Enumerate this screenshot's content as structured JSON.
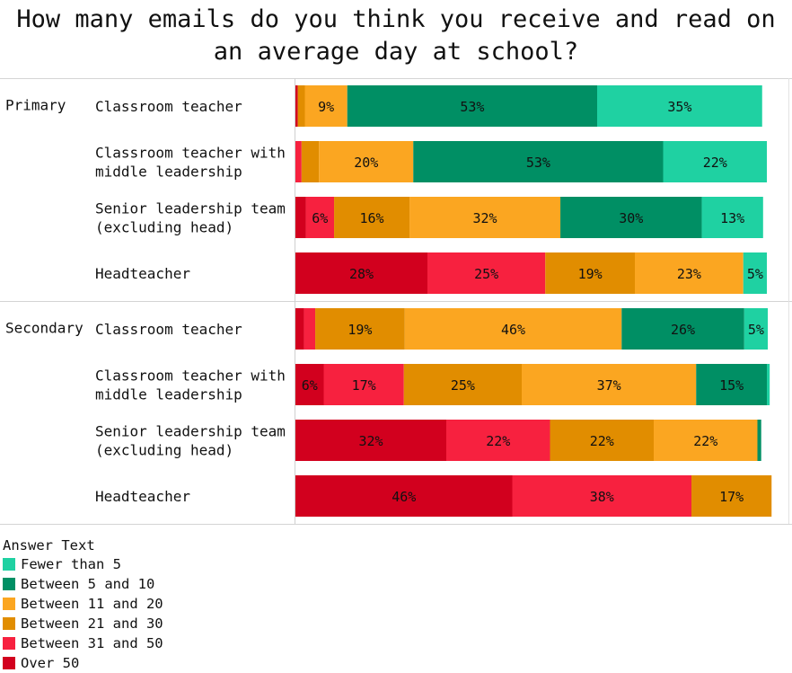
{
  "chart_data": {
    "type": "bar",
    "orientation": "horizontal-stacked",
    "title": "How many emails do you think you receive and read on\nan average day at school?",
    "legend_title": "Answer Text",
    "legend_position": "bottom-left",
    "series": [
      {
        "name": "Over 50",
        "color": "#d2001e"
      },
      {
        "name": "Between 31 and 50",
        "color": "#f7213f"
      },
      {
        "name": "Between 21 and 30",
        "color": "#e18d00"
      },
      {
        "name": "Between 11 and 20",
        "color": "#fba621"
      },
      {
        "name": "Between 5 and 10",
        "color": "#008f64"
      },
      {
        "name": "Fewer than 5",
        "color": "#1fd1a2"
      }
    ],
    "groups": [
      {
        "label": "Primary",
        "rows": [
          {
            "label": "Classroom teacher",
            "values": [
              0.5,
              0,
              1.5,
              9,
              53,
              35
            ]
          },
          {
            "label": "Classroom teacher with\nmiddle leadership",
            "values": [
              0,
              1.3,
              3.7,
              20,
              53,
              22
            ]
          },
          {
            "label": "Senior leadership team\n(excluding head)",
            "values": [
              2.2,
              6,
              16,
              32,
              30,
              13
            ]
          },
          {
            "label": "Headteacher",
            "values": [
              28,
              25,
              19,
              23,
              0,
              5
            ]
          }
        ]
      },
      {
        "label": "Secondary",
        "rows": [
          {
            "label": "Classroom teacher",
            "values": [
              1.8,
              2.4,
              19,
              46,
              26,
              5
            ]
          },
          {
            "label": "Classroom teacher with\nmiddle leadership",
            "values": [
              6,
              17,
              25,
              37,
              15,
              0.6
            ]
          },
          {
            "label": "Senior leadership team\n(excluding head)",
            "values": [
              32,
              22,
              22,
              22,
              0.8,
              0
            ]
          },
          {
            "label": "Headteacher",
            "values": [
              46,
              38,
              17,
              0,
              0,
              0
            ]
          }
        ]
      }
    ],
    "xlim": [
      0,
      100
    ],
    "grid": false
  }
}
